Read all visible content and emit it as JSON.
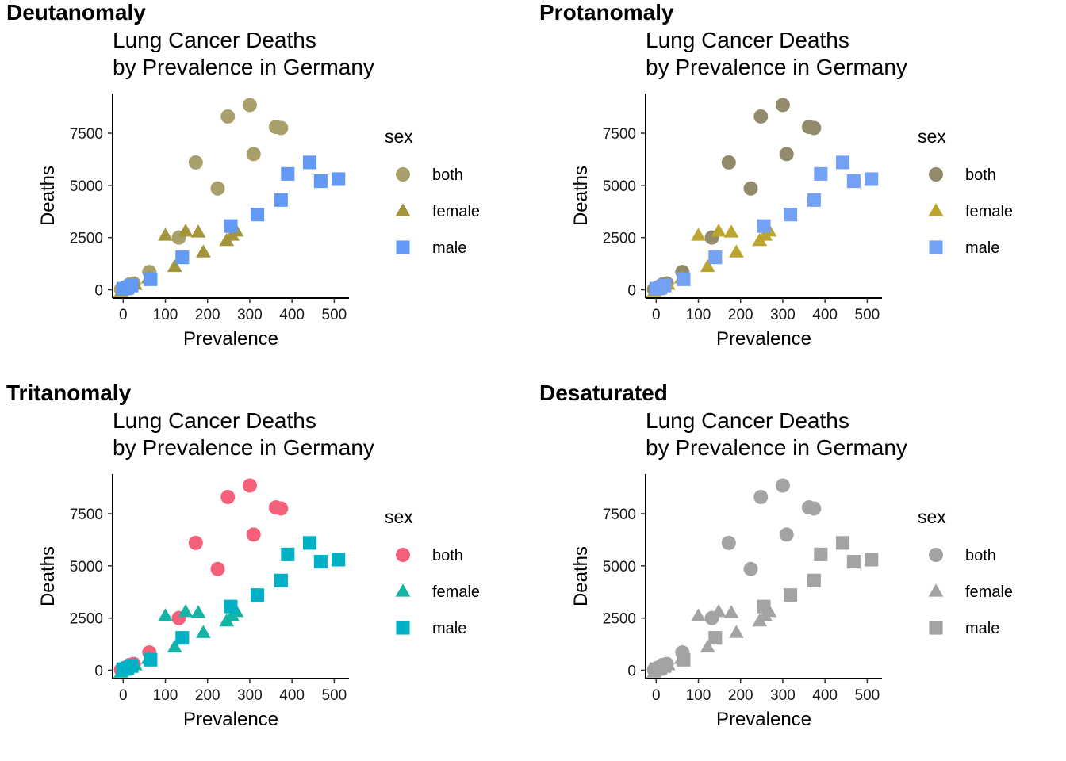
{
  "figure": {
    "title_line1": "Lung Cancer Deaths",
    "title_line2": "by Prevalence in Germany",
    "xlabel": "Prevalence",
    "ylabel": "Deaths",
    "legend_title": "sex"
  },
  "panels": [
    {
      "label": "Deutanomaly",
      "colors": {
        "both": "#A99F6B",
        "female": "#A4953A",
        "male": "#6199F5"
      }
    },
    {
      "label": "Protanomaly",
      "colors": {
        "both": "#928A6B",
        "female": "#BBA52E",
        "male": "#73A1F4"
      }
    },
    {
      "label": "Tritanomaly",
      "colors": {
        "both": "#F4607A",
        "female": "#14B5A4",
        "male": "#00B1C6"
      }
    },
    {
      "label": "Desaturated",
      "colors": {
        "both": "#A3A3A3",
        "female": "#A3A3A3",
        "male": "#A3A3A3"
      }
    }
  ],
  "chart_data": {
    "type": "scatter",
    "title": "Lung Cancer Deaths by Prevalence in Germany",
    "xlabel": "Prevalence",
    "ylabel": "Deaths",
    "xlim": [
      -25,
      535
    ],
    "ylim": [
      -400,
      9400
    ],
    "xticks": [
      0,
      100,
      200,
      300,
      400,
      500
    ],
    "yticks": [
      0,
      2500,
      5000,
      7500
    ],
    "legend": {
      "title": "sex",
      "position": "right"
    },
    "series": [
      {
        "name": "both",
        "shape": "circle",
        "x": [
          -5,
          5,
          15,
          25,
          62,
          132,
          172,
          224,
          248,
          300,
          309,
          362,
          374
        ],
        "y": [
          20,
          120,
          250,
          300,
          850,
          2500,
          6100,
          4850,
          8300,
          8850,
          6500,
          7800,
          7750
        ]
      },
      {
        "name": "female",
        "shape": "triangle",
        "x": [
          -5,
          5,
          15,
          28,
          60,
          100,
          122,
          148,
          178,
          190,
          245,
          258,
          268
        ],
        "y": [
          -100,
          0,
          150,
          250,
          550,
          2600,
          1100,
          2800,
          2750,
          1800,
          2350,
          2600,
          2800
        ]
      },
      {
        "name": "male",
        "shape": "square",
        "x": [
          0,
          10,
          20,
          65,
          140,
          255,
          318,
          374,
          390,
          442,
          468,
          510
        ],
        "y": [
          50,
          100,
          200,
          500,
          1550,
          3050,
          3600,
          4300,
          5550,
          6100,
          5200,
          5300
        ]
      }
    ]
  }
}
